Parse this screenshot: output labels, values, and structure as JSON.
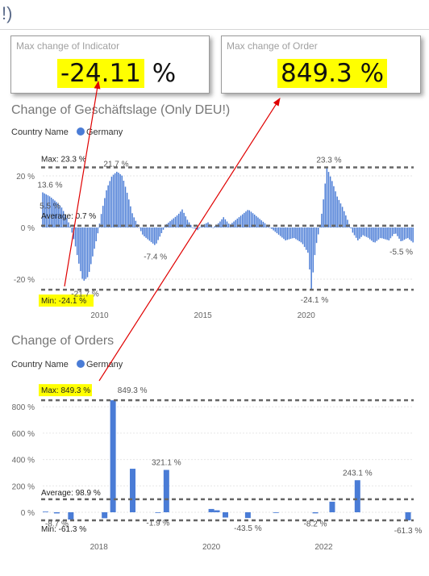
{
  "page": {
    "title_fragment": "!)"
  },
  "cards": {
    "indicator": {
      "title": "Max change of Indicator",
      "value": "-24.11",
      "unit": "%"
    },
    "order": {
      "title": "Max change of Order",
      "value": "849.3 %"
    }
  },
  "colors": {
    "bar": "#4a7cd6",
    "highlight": "#ffff00",
    "arrow": "#e00000",
    "refline": "#666666"
  },
  "chart_data": [
    {
      "type": "bar",
      "title": "Change of Geschäftslage (Only DEU!)",
      "legend_label": "Country Name",
      "series": [
        {
          "name": "Germany"
        }
      ],
      "ylim": [
        -25,
        26
      ],
      "yticks": [
        {
          "v": 20,
          "label": "20 %"
        },
        {
          "v": 0,
          "label": "0 %"
        },
        {
          "v": -20,
          "label": "-20 %"
        }
      ],
      "xlim": [
        2007.25,
        2025.2
      ],
      "xticks": [
        {
          "v": 2010,
          "label": "2010"
        },
        {
          "v": 2015,
          "label": "2015"
        },
        {
          "v": 2020,
          "label": "2020"
        }
      ],
      "ref_lines": [
        {
          "v": 23.3,
          "label": "Max: 23.3 %",
          "highlight": false
        },
        {
          "v": 0.7,
          "label": "Average: 0.7 %",
          "highlight": false
        },
        {
          "v": -24.1,
          "label": "Min: -24.1 %",
          "highlight": true
        }
      ],
      "data_labels": [
        {
          "x": 2007.6,
          "v": 13.6,
          "text": "13.6 %"
        },
        {
          "x": 2007.6,
          "v": 5.5,
          "text": "5.5 %"
        },
        {
          "x": 2010.8,
          "v": 21.7,
          "text": "21.7 %"
        },
        {
          "x": 2009.3,
          "v": -21.7,
          "text": "-21.7 %"
        },
        {
          "x": 2012.7,
          "v": -7.4,
          "text": "-7.4 %"
        },
        {
          "x": 2020.4,
          "v": -24.1,
          "text": "-24.1 %"
        },
        {
          "x": 2021.1,
          "v": 23.3,
          "text": "23.3 %"
        },
        {
          "x": 2024.6,
          "v": -5.5,
          "text": "-5.5 %"
        }
      ],
      "anchors": [
        {
          "x": 2007.25,
          "v": 13.6
        },
        {
          "x": 2007.6,
          "v": 12
        },
        {
          "x": 2007.9,
          "v": 10
        },
        {
          "x": 2008.15,
          "v": 8
        },
        {
          "x": 2008.4,
          "v": 4
        },
        {
          "x": 2008.6,
          "v": 0
        },
        {
          "x": 2008.8,
          "v": -6
        },
        {
          "x": 2009.0,
          "v": -14
        },
        {
          "x": 2009.2,
          "v": -21
        },
        {
          "x": 2009.45,
          "v": -19
        },
        {
          "x": 2009.7,
          "v": -10
        },
        {
          "x": 2009.9,
          "v": -3
        },
        {
          "x": 2010.1,
          "v": 6
        },
        {
          "x": 2010.35,
          "v": 15
        },
        {
          "x": 2010.6,
          "v": 20
        },
        {
          "x": 2010.85,
          "v": 21.7
        },
        {
          "x": 2011.1,
          "v": 20
        },
        {
          "x": 2011.35,
          "v": 13
        },
        {
          "x": 2011.6,
          "v": 5
        },
        {
          "x": 2011.85,
          "v": 1
        },
        {
          "x": 2012.1,
          "v": -3
        },
        {
          "x": 2012.4,
          "v": -5
        },
        {
          "x": 2012.7,
          "v": -7
        },
        {
          "x": 2012.95,
          "v": -3
        },
        {
          "x": 2013.2,
          "v": 1
        },
        {
          "x": 2013.5,
          "v": 3
        },
        {
          "x": 2013.8,
          "v": 5
        },
        {
          "x": 2014.0,
          "v": 7
        },
        {
          "x": 2014.25,
          "v": 3
        },
        {
          "x": 2014.5,
          "v": 0
        },
        {
          "x": 2014.75,
          "v": -1
        },
        {
          "x": 2015.0,
          "v": 1
        },
        {
          "x": 2015.25,
          "v": 2
        },
        {
          "x": 2015.5,
          "v": 0
        },
        {
          "x": 2015.8,
          "v": 2
        },
        {
          "x": 2016.0,
          "v": 4
        },
        {
          "x": 2016.3,
          "v": 1
        },
        {
          "x": 2016.6,
          "v": 3
        },
        {
          "x": 2016.9,
          "v": 5
        },
        {
          "x": 2017.2,
          "v": 7
        },
        {
          "x": 2017.5,
          "v": 5
        },
        {
          "x": 2017.8,
          "v": 3
        },
        {
          "x": 2018.1,
          "v": 1
        },
        {
          "x": 2018.4,
          "v": -1
        },
        {
          "x": 2018.7,
          "v": -3
        },
        {
          "x": 2019.0,
          "v": -5
        },
        {
          "x": 2019.4,
          "v": -4
        },
        {
          "x": 2019.8,
          "v": -6
        },
        {
          "x": 2020.1,
          "v": -10
        },
        {
          "x": 2020.25,
          "v": -24.1
        },
        {
          "x": 2020.45,
          "v": -8
        },
        {
          "x": 2020.7,
          "v": 2
        },
        {
          "x": 2020.85,
          "v": 12
        },
        {
          "x": 2021.0,
          "v": 23.3
        },
        {
          "x": 2021.25,
          "v": 18
        },
        {
          "x": 2021.5,
          "v": 12
        },
        {
          "x": 2021.75,
          "v": 8
        },
        {
          "x": 2022.0,
          "v": 3
        },
        {
          "x": 2022.25,
          "v": -2
        },
        {
          "x": 2022.5,
          "v": -5
        },
        {
          "x": 2022.75,
          "v": -3
        },
        {
          "x": 2023.0,
          "v": -4
        },
        {
          "x": 2023.3,
          "v": -6
        },
        {
          "x": 2023.6,
          "v": -4
        },
        {
          "x": 2024.0,
          "v": -5
        },
        {
          "x": 2024.3,
          "v": -2
        },
        {
          "x": 2024.6,
          "v": -5.5
        },
        {
          "x": 2024.9,
          "v": -4
        },
        {
          "x": 2025.2,
          "v": -6
        }
      ]
    },
    {
      "type": "bar",
      "title": "Change of Orders",
      "legend_label": "Country Name",
      "series": [
        {
          "name": "Germany"
        }
      ],
      "ylim": [
        -61.3,
        849.3
      ],
      "yticks": [
        {
          "v": 800,
          "label": "800 %"
        },
        {
          "v": 600,
          "label": "600 %"
        },
        {
          "v": 400,
          "label": "400 %"
        },
        {
          "v": 200,
          "label": "200 %"
        },
        {
          "v": 0,
          "label": "0 %"
        }
      ],
      "xlim": [
        2017.0,
        2023.6
      ],
      "xticks": [
        {
          "v": 2018,
          "label": "2018"
        },
        {
          "v": 2020,
          "label": "2020"
        },
        {
          "v": 2022,
          "label": "2022"
        }
      ],
      "ref_lines": [
        {
          "v": 849.3,
          "label": "Max: 849.3 %",
          "highlight": true
        },
        {
          "v": 98.9,
          "label": "Average: 98.9 %",
          "highlight": false
        },
        {
          "v": -61.3,
          "label": "Min: -61.3 %",
          "highlight": false
        }
      ],
      "bars": [
        {
          "x": 2017.05,
          "v": 5
        },
        {
          "x": 2017.25,
          "v": -8.7
        },
        {
          "x": 2017.5,
          "v": -55
        },
        {
          "x": 2018.1,
          "v": -45
        },
        {
          "x": 2018.25,
          "v": 849.3
        },
        {
          "x": 2018.6,
          "v": 330
        },
        {
          "x": 2019.05,
          "v": -1.9
        },
        {
          "x": 2019.2,
          "v": 321.1
        },
        {
          "x": 2020.0,
          "v": 25
        },
        {
          "x": 2020.1,
          "v": 15
        },
        {
          "x": 2020.25,
          "v": -40
        },
        {
          "x": 2020.65,
          "v": -43.5
        },
        {
          "x": 2021.15,
          "v": -5
        },
        {
          "x": 2021.85,
          "v": -8.2
        },
        {
          "x": 2022.15,
          "v": 80
        },
        {
          "x": 2022.6,
          "v": 243.1
        },
        {
          "x": 2023.5,
          "v": -61.3
        }
      ],
      "data_labels": [
        {
          "x": 2018.25,
          "v": 849.3,
          "text": "849.3 %"
        },
        {
          "x": 2019.2,
          "v": 321.1,
          "text": "321.1 %"
        },
        {
          "x": 2017.25,
          "v": -8.7,
          "text": "-8.7 %"
        },
        {
          "x": 2019.05,
          "v": -1.9,
          "text": "-1.9 %"
        },
        {
          "x": 2020.65,
          "v": -43.5,
          "text": "-43.5 %"
        },
        {
          "x": 2021.85,
          "v": -8.2,
          "text": "-8.2 %"
        },
        {
          "x": 2022.6,
          "v": 243.1,
          "text": "243.1 %"
        },
        {
          "x": 2023.5,
          "v": -61.3,
          "text": "-61.3 %"
        }
      ]
    }
  ]
}
